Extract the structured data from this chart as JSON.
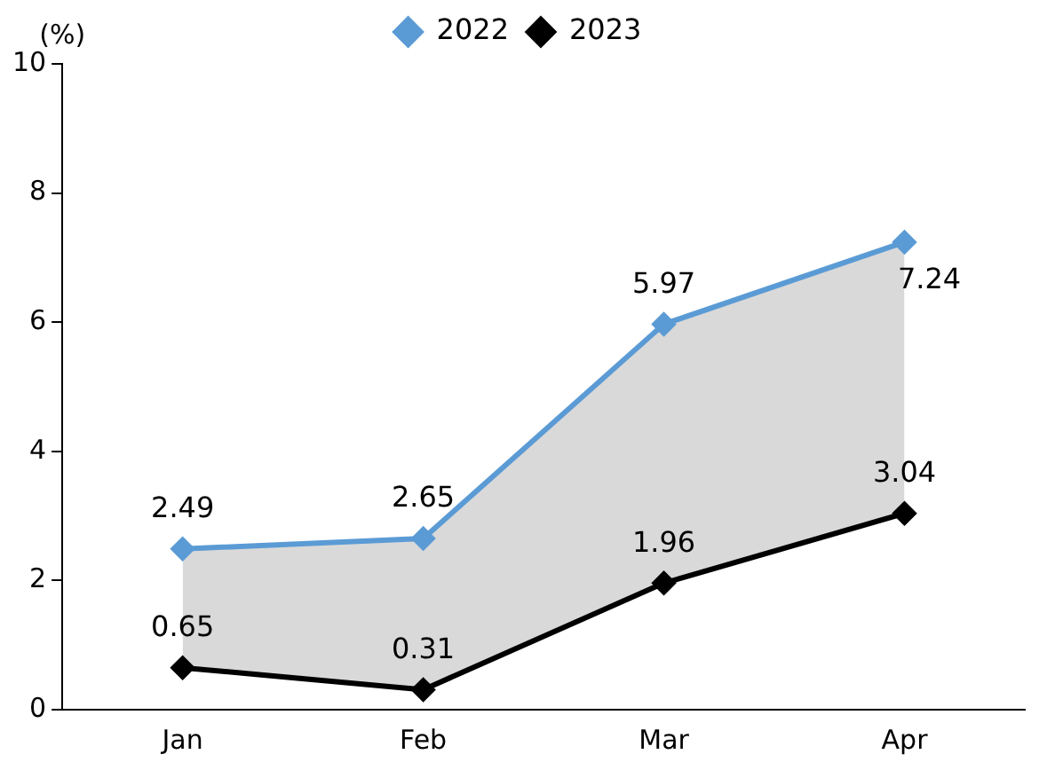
{
  "chart_data": {
    "type": "line",
    "ylabel": "(%)",
    "categories": [
      "Jan",
      "Feb",
      "Mar",
      "Apr"
    ],
    "series": [
      {
        "name": "2022",
        "color": "#5b9bd5",
        "values": [
          2.49,
          2.65,
          5.97,
          7.24
        ],
        "lower": [
          0.65,
          0.31,
          1.96,
          3.04
        ],
        "upper": [
          2.49,
          2.65,
          5.97,
          7.24
        ]
      },
      {
        "name": "2023",
        "color": "#000000",
        "values": [
          0.65,
          0.31,
          1.96,
          3.04
        ]
      }
    ],
    "ylim": [
      0,
      10
    ],
    "yticks": [
      0,
      2,
      4,
      6,
      8,
      10
    ],
    "grid": false,
    "legend": "top",
    "marker": "diamond",
    "line_style": "solid",
    "data_labels": true
  }
}
